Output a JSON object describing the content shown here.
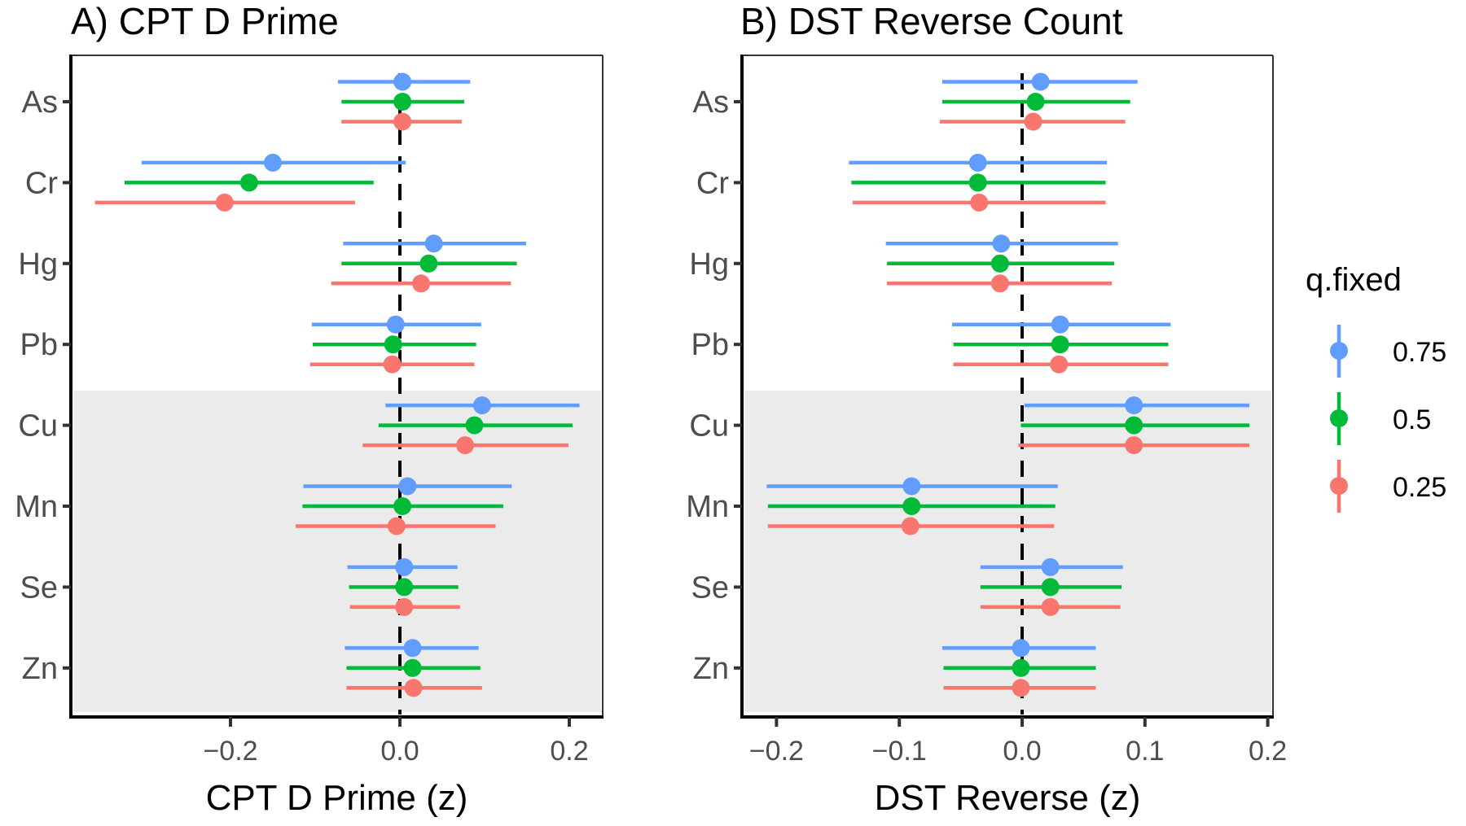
{
  "chart_data": [
    {
      "type": "forest",
      "panel": "A",
      "title": "A) CPT D Prime",
      "xlabel": "CPT D Prime (z)",
      "ylabel": "",
      "xlim": [
        -0.375,
        0.24
      ],
      "xticks": [
        -0.2,
        0.0,
        0.2
      ],
      "xtick_labels": [
        "−0.2",
        "0.0",
        "0.2"
      ],
      "reference_line": 0.0,
      "categories": [
        "As",
        "Cr",
        "Hg",
        "Pb",
        "Cu",
        "Mn",
        "Se",
        "Zn"
      ],
      "shaded_categories": [
        "Cu",
        "Mn",
        "Se",
        "Zn"
      ],
      "series": [
        {
          "name": "0.75",
          "estimate": [
            0.003,
            -0.15,
            0.04,
            -0.005,
            0.097,
            0.009,
            0.005,
            0.015
          ],
          "lower": [
            -0.073,
            -0.305,
            -0.067,
            -0.104,
            -0.017,
            -0.114,
            -0.062,
            -0.065
          ],
          "upper": [
            0.083,
            0.007,
            0.149,
            0.096,
            0.212,
            0.132,
            0.068,
            0.093
          ]
        },
        {
          "name": "0.5",
          "estimate": [
            0.003,
            -0.178,
            0.034,
            -0.008,
            0.088,
            0.003,
            0.005,
            0.015
          ],
          "lower": [
            -0.069,
            -0.325,
            -0.069,
            -0.103,
            -0.025,
            -0.115,
            -0.06,
            -0.063
          ],
          "upper": [
            0.076,
            -0.031,
            0.138,
            0.09,
            0.204,
            0.122,
            0.069,
            0.095
          ]
        },
        {
          "name": "0.25",
          "estimate": [
            0.003,
            -0.207,
            0.025,
            -0.009,
            0.077,
            -0.004,
            0.005,
            0.016
          ],
          "lower": [
            -0.069,
            -0.36,
            -0.081,
            -0.106,
            -0.044,
            -0.123,
            -0.059,
            -0.063
          ],
          "upper": [
            0.073,
            -0.053,
            0.131,
            0.088,
            0.199,
            0.113,
            0.071,
            0.097
          ]
        }
      ]
    },
    {
      "type": "forest",
      "panel": "B",
      "title": "B) DST Reverse Count",
      "xlabel": "DST Reverse (z)",
      "ylabel": "",
      "xlim": [
        -0.228,
        0.205
      ],
      "xticks": [
        -0.2,
        -0.1,
        0.0,
        0.1,
        0.2
      ],
      "xtick_labels": [
        "−0.2",
        "−0.1",
        "0.0",
        "0.1",
        "0.2"
      ],
      "reference_line": 0.0,
      "categories": [
        "As",
        "Cr",
        "Hg",
        "Pb",
        "Cu",
        "Mn",
        "Se",
        "Zn"
      ],
      "shaded_categories": [
        "Cu",
        "Mn",
        "Se",
        "Zn"
      ],
      "series": [
        {
          "name": "0.75",
          "estimate": [
            0.015,
            -0.036,
            -0.017,
            0.031,
            0.091,
            -0.09,
            0.023,
            -0.001
          ],
          "lower": [
            -0.065,
            -0.141,
            -0.111,
            -0.057,
            0.002,
            -0.208,
            -0.034,
            -0.065
          ],
          "upper": [
            0.094,
            0.069,
            0.078,
            0.121,
            0.185,
            0.029,
            0.082,
            0.06
          ]
        },
        {
          "name": "0.5",
          "estimate": [
            0.011,
            -0.036,
            -0.018,
            0.031,
            0.091,
            -0.09,
            0.023,
            -0.001
          ],
          "lower": [
            -0.065,
            -0.139,
            -0.11,
            -0.056,
            -0.001,
            -0.207,
            -0.034,
            -0.064
          ],
          "upper": [
            0.088,
            0.068,
            0.075,
            0.119,
            0.185,
            0.027,
            0.081,
            0.06
          ]
        },
        {
          "name": "0.25",
          "estimate": [
            0.009,
            -0.035,
            -0.018,
            0.03,
            0.091,
            -0.091,
            0.023,
            -0.001
          ],
          "lower": [
            -0.067,
            -0.138,
            -0.11,
            -0.056,
            -0.003,
            -0.207,
            -0.034,
            -0.064
          ],
          "upper": [
            0.084,
            0.068,
            0.073,
            0.119,
            0.185,
            0.026,
            0.08,
            0.06
          ]
        }
      ]
    }
  ],
  "legend": {
    "title": "q.fixed",
    "placement": "right",
    "items": [
      {
        "label": "0.75",
        "color": "#619CFF"
      },
      {
        "label": "0.5",
        "color": "#00BA38"
      },
      {
        "label": "0.25",
        "color": "#F8766D"
      }
    ]
  },
  "colors": {
    "0.75": "#619CFF",
    "0.5": "#00BA38",
    "0.25": "#F8766D",
    "shade": "#EBEBEB",
    "reference_line": "#000000"
  }
}
